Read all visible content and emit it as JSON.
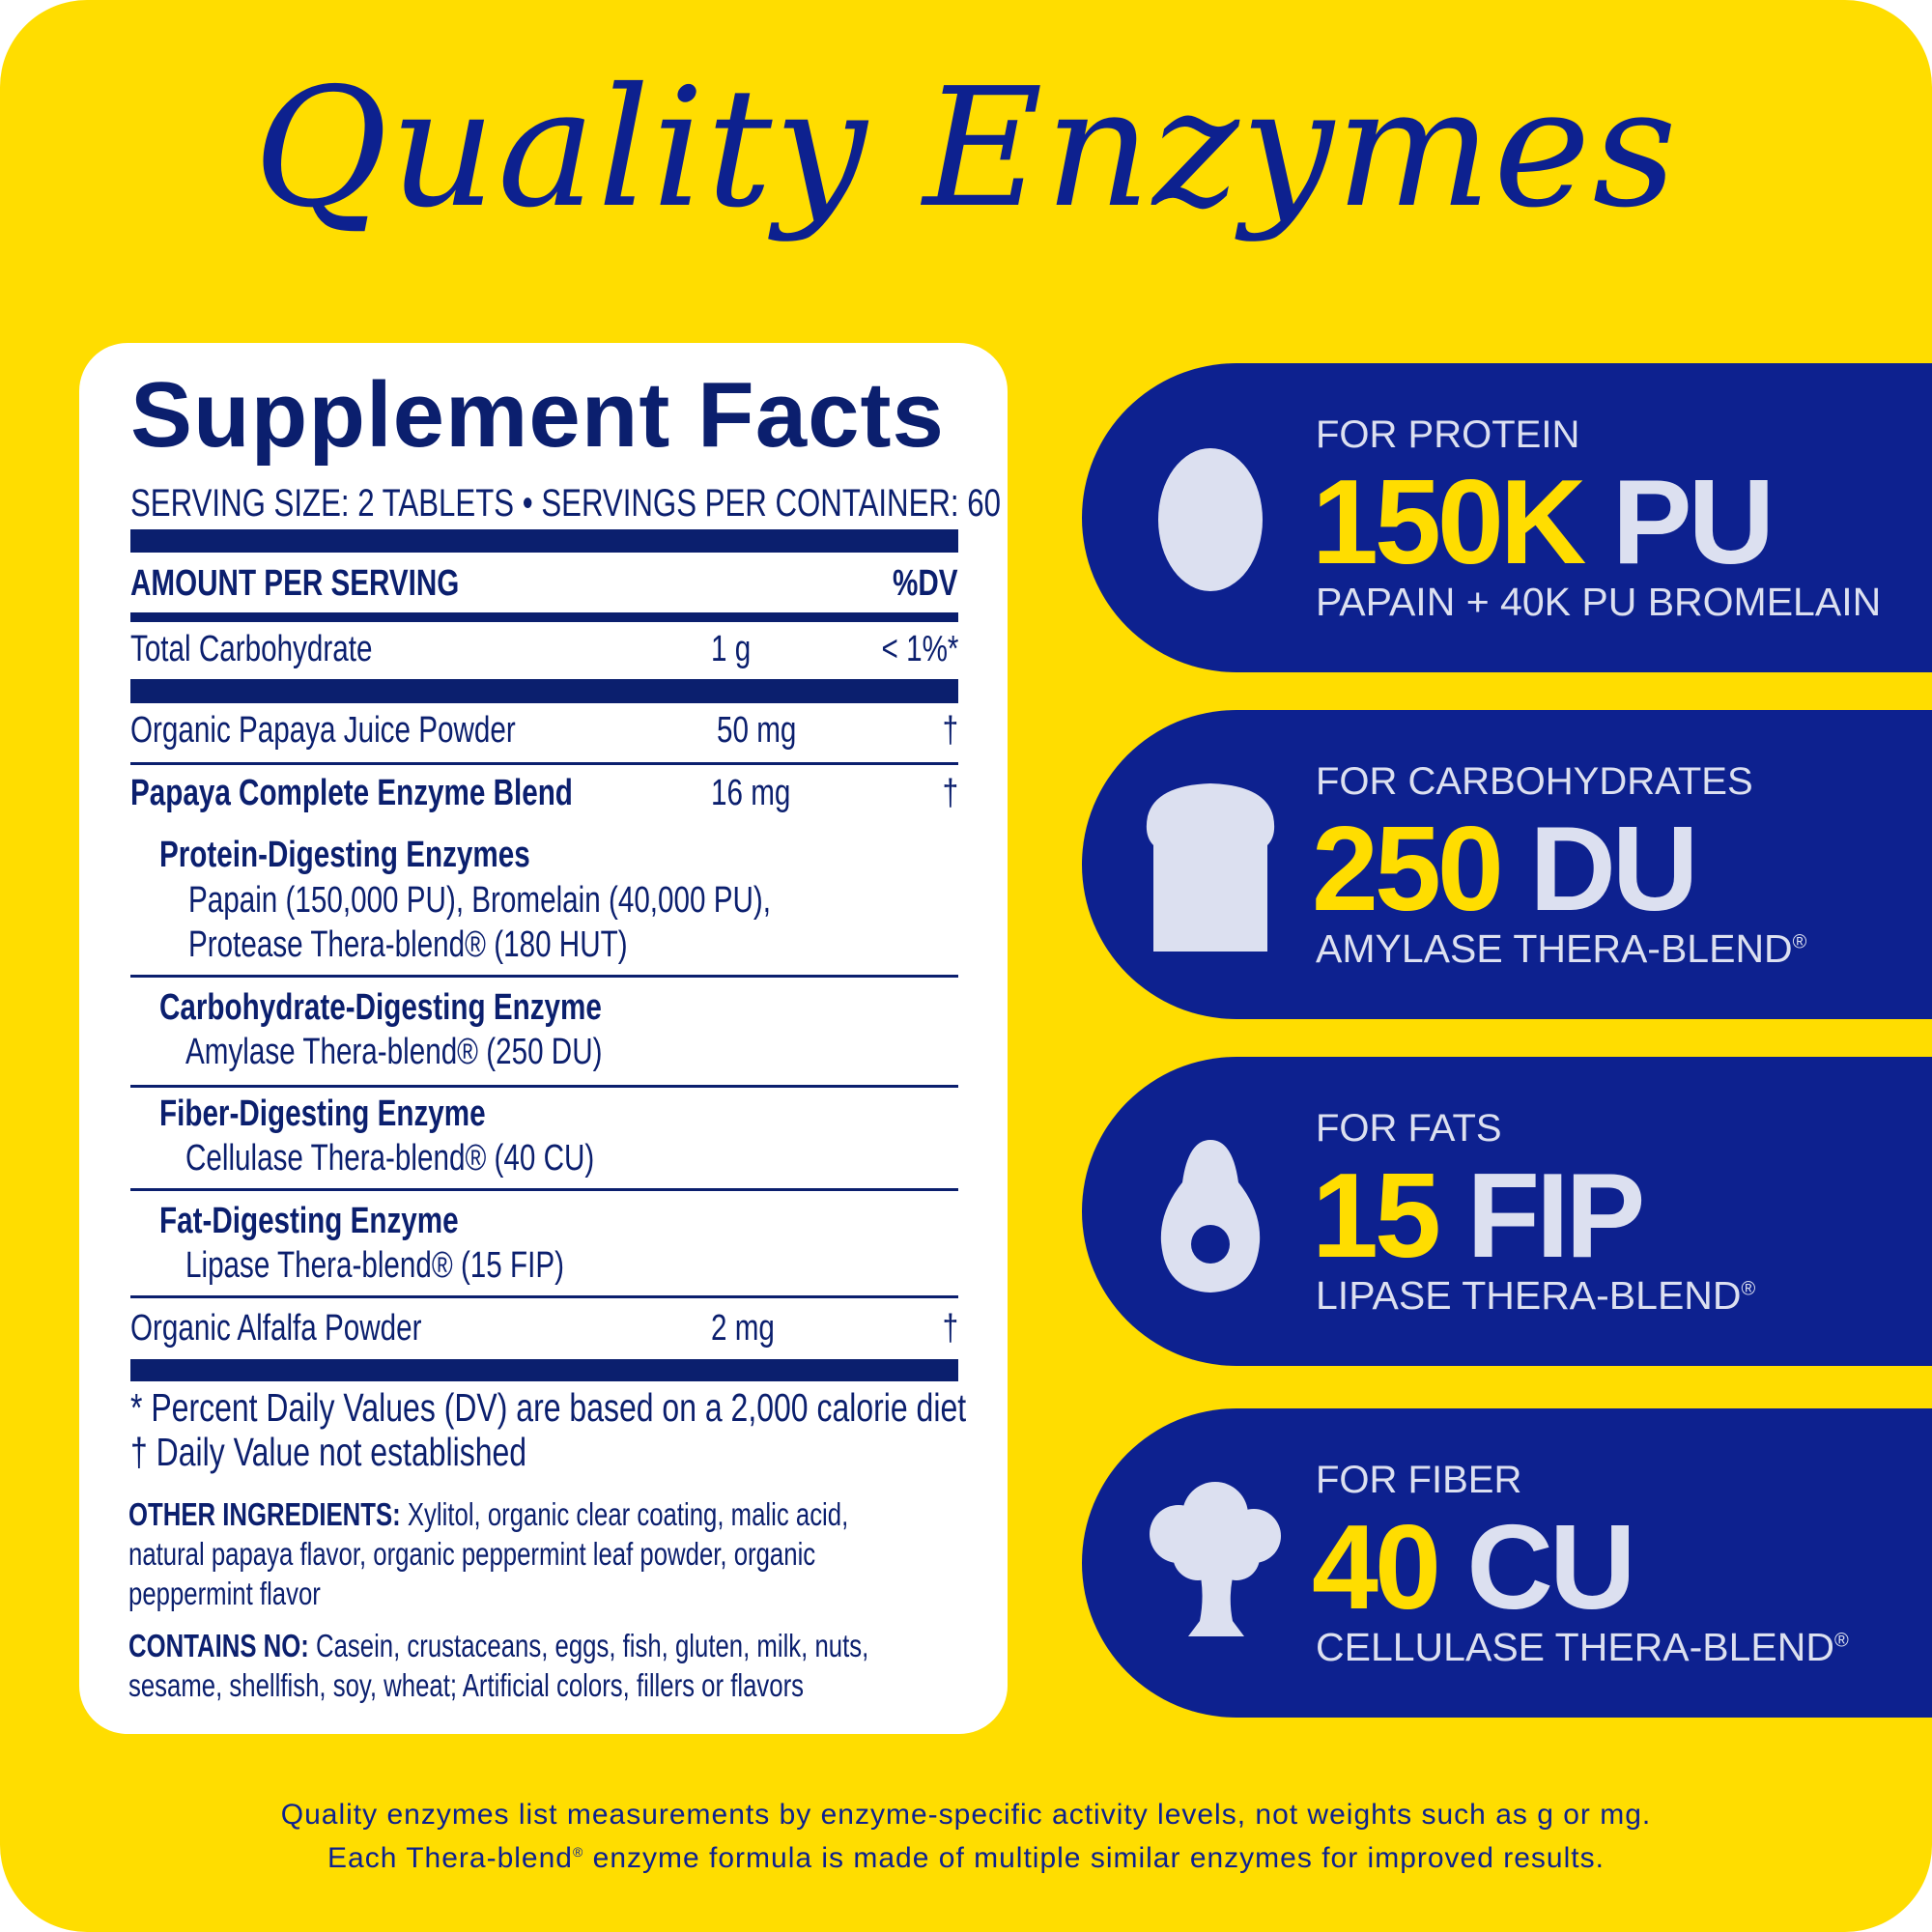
{
  "title": "Quality Enzymes",
  "facts": {
    "heading": "Supplement Facts",
    "serving": "SERVING SIZE: 2 TABLETS • SERVINGS PER CONTAINER: 60",
    "col_amount": "AMOUNT PER SERVING",
    "col_dv": "%DV",
    "rows": [
      {
        "name": "Total Carbohydrate",
        "amount": "1 g",
        "dv": "< 1%*"
      },
      {
        "name": "Organic Papaya Juice Powder",
        "amount": "50 mg",
        "dv": "†"
      },
      {
        "name": "Papaya Complete Enzyme Blend",
        "amount": "16 mg",
        "dv": "†"
      },
      {
        "name": "Organic Alfalfa Powder",
        "amount": "2 mg",
        "dv": "†"
      }
    ],
    "groups": [
      {
        "heading": "Protein-Digesting Enzymes",
        "lines": [
          "Papain (150,000 PU), Bromelain (40,000 PU),",
          "Protease Thera-blend® (180 HUT)"
        ]
      },
      {
        "heading": "Carbohydrate-Digesting Enzyme",
        "lines": [
          "Amylase Thera-blend® (250 DU)"
        ]
      },
      {
        "heading": "Fiber-Digesting Enzyme",
        "lines": [
          "Cellulase Thera-blend® (40 CU)"
        ]
      },
      {
        "heading": "Fat-Digesting Enzyme",
        "lines": [
          "Lipase Thera-blend® (15 FIP)"
        ]
      }
    ],
    "footnotes": [
      "* Percent Daily Values (DV) are based on a 2,000 calorie diet",
      "† Daily Value not established"
    ],
    "other_label": "OTHER INGREDIENTS:",
    "other_lines": [
      " Xylitol, organic clear coating, malic acid,",
      "natural papaya flavor, organic peppermint leaf powder, organic",
      "peppermint flavor"
    ],
    "contains_label": "CONTAINS NO:",
    "contains_lines": [
      " Casein, crustaceans, eggs, fish, gluten, milk, nuts,",
      "sesame, shellfish, soy, wheat; Artificial colors, fillers or flavors"
    ]
  },
  "pills": [
    {
      "icon": "egg-icon",
      "label": "FOR PROTEIN",
      "value": "150K",
      "unit": " PU",
      "sub": "PAPAIN + 40K PU BROMELAIN",
      "reg": ""
    },
    {
      "icon": "bread-icon",
      "label": "FOR CARBOHYDRATES",
      "value": "250",
      "unit": " DU",
      "sub": "AMYLASE THERA-BLEND",
      "reg": "®"
    },
    {
      "icon": "avocado-icon",
      "label": "FOR FATS",
      "value": "15",
      "unit": " FIP",
      "sub": "LIPASE THERA-BLEND",
      "reg": "®"
    },
    {
      "icon": "broccoli-icon",
      "label": "FOR FIBER",
      "value": "40",
      "unit": " CU",
      "sub": "CELLULASE THERA-BLEND",
      "reg": "®"
    }
  ],
  "colors": {
    "background": "#FFDD00",
    "navy": "#0D218F",
    "label_navy": "#0B1F6E",
    "light": "#DCE0F0"
  },
  "footer": {
    "line1": "Quality enzymes list measurements by enzyme-specific activity levels, not weights such as g or mg.",
    "line2a": "Each Thera-blend",
    "reg": "®",
    "line2b": " enzyme formula is made of multiple similar enzymes for improved results."
  }
}
